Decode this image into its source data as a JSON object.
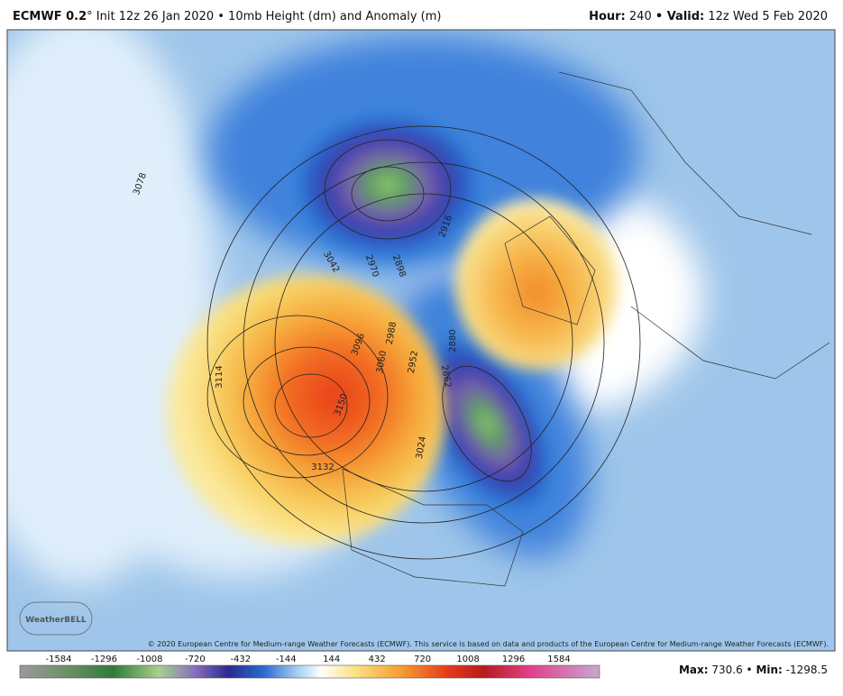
{
  "header": {
    "model": "ECMWF 0.2",
    "description": "° Init 12z 26 Jan 2020 • 10mb Height (dm) and Anomaly (m)",
    "hour_label": "Hour:",
    "hour": "240",
    "valid_label": "• Valid:",
    "valid": "12z Wed 5 Feb 2020"
  },
  "map": {
    "contour_labels": [
      3078,
      3042,
      2970,
      2898,
      2916,
      3114,
      3096,
      3060,
      2988,
      2952,
      2880,
      2862,
      3150,
      3132,
      3024
    ],
    "copyright": "© 2020 European Centre for Medium-range Weather Forecasts (ECMWF). This service is based on data and products of the European Centre for Medium-range Weather Forecasts (ECMWF).",
    "logo": "WeatherBELL"
  },
  "colorbar": {
    "ticks": [
      -1584,
      -1296,
      -1008,
      -720,
      -432,
      -144,
      144,
      432,
      720,
      1008,
      1296,
      1584
    ]
  },
  "footer": {
    "max_label": "Max:",
    "max": 730.6,
    "sep": "•",
    "min_label": "Min:",
    "min": -1298.5
  }
}
